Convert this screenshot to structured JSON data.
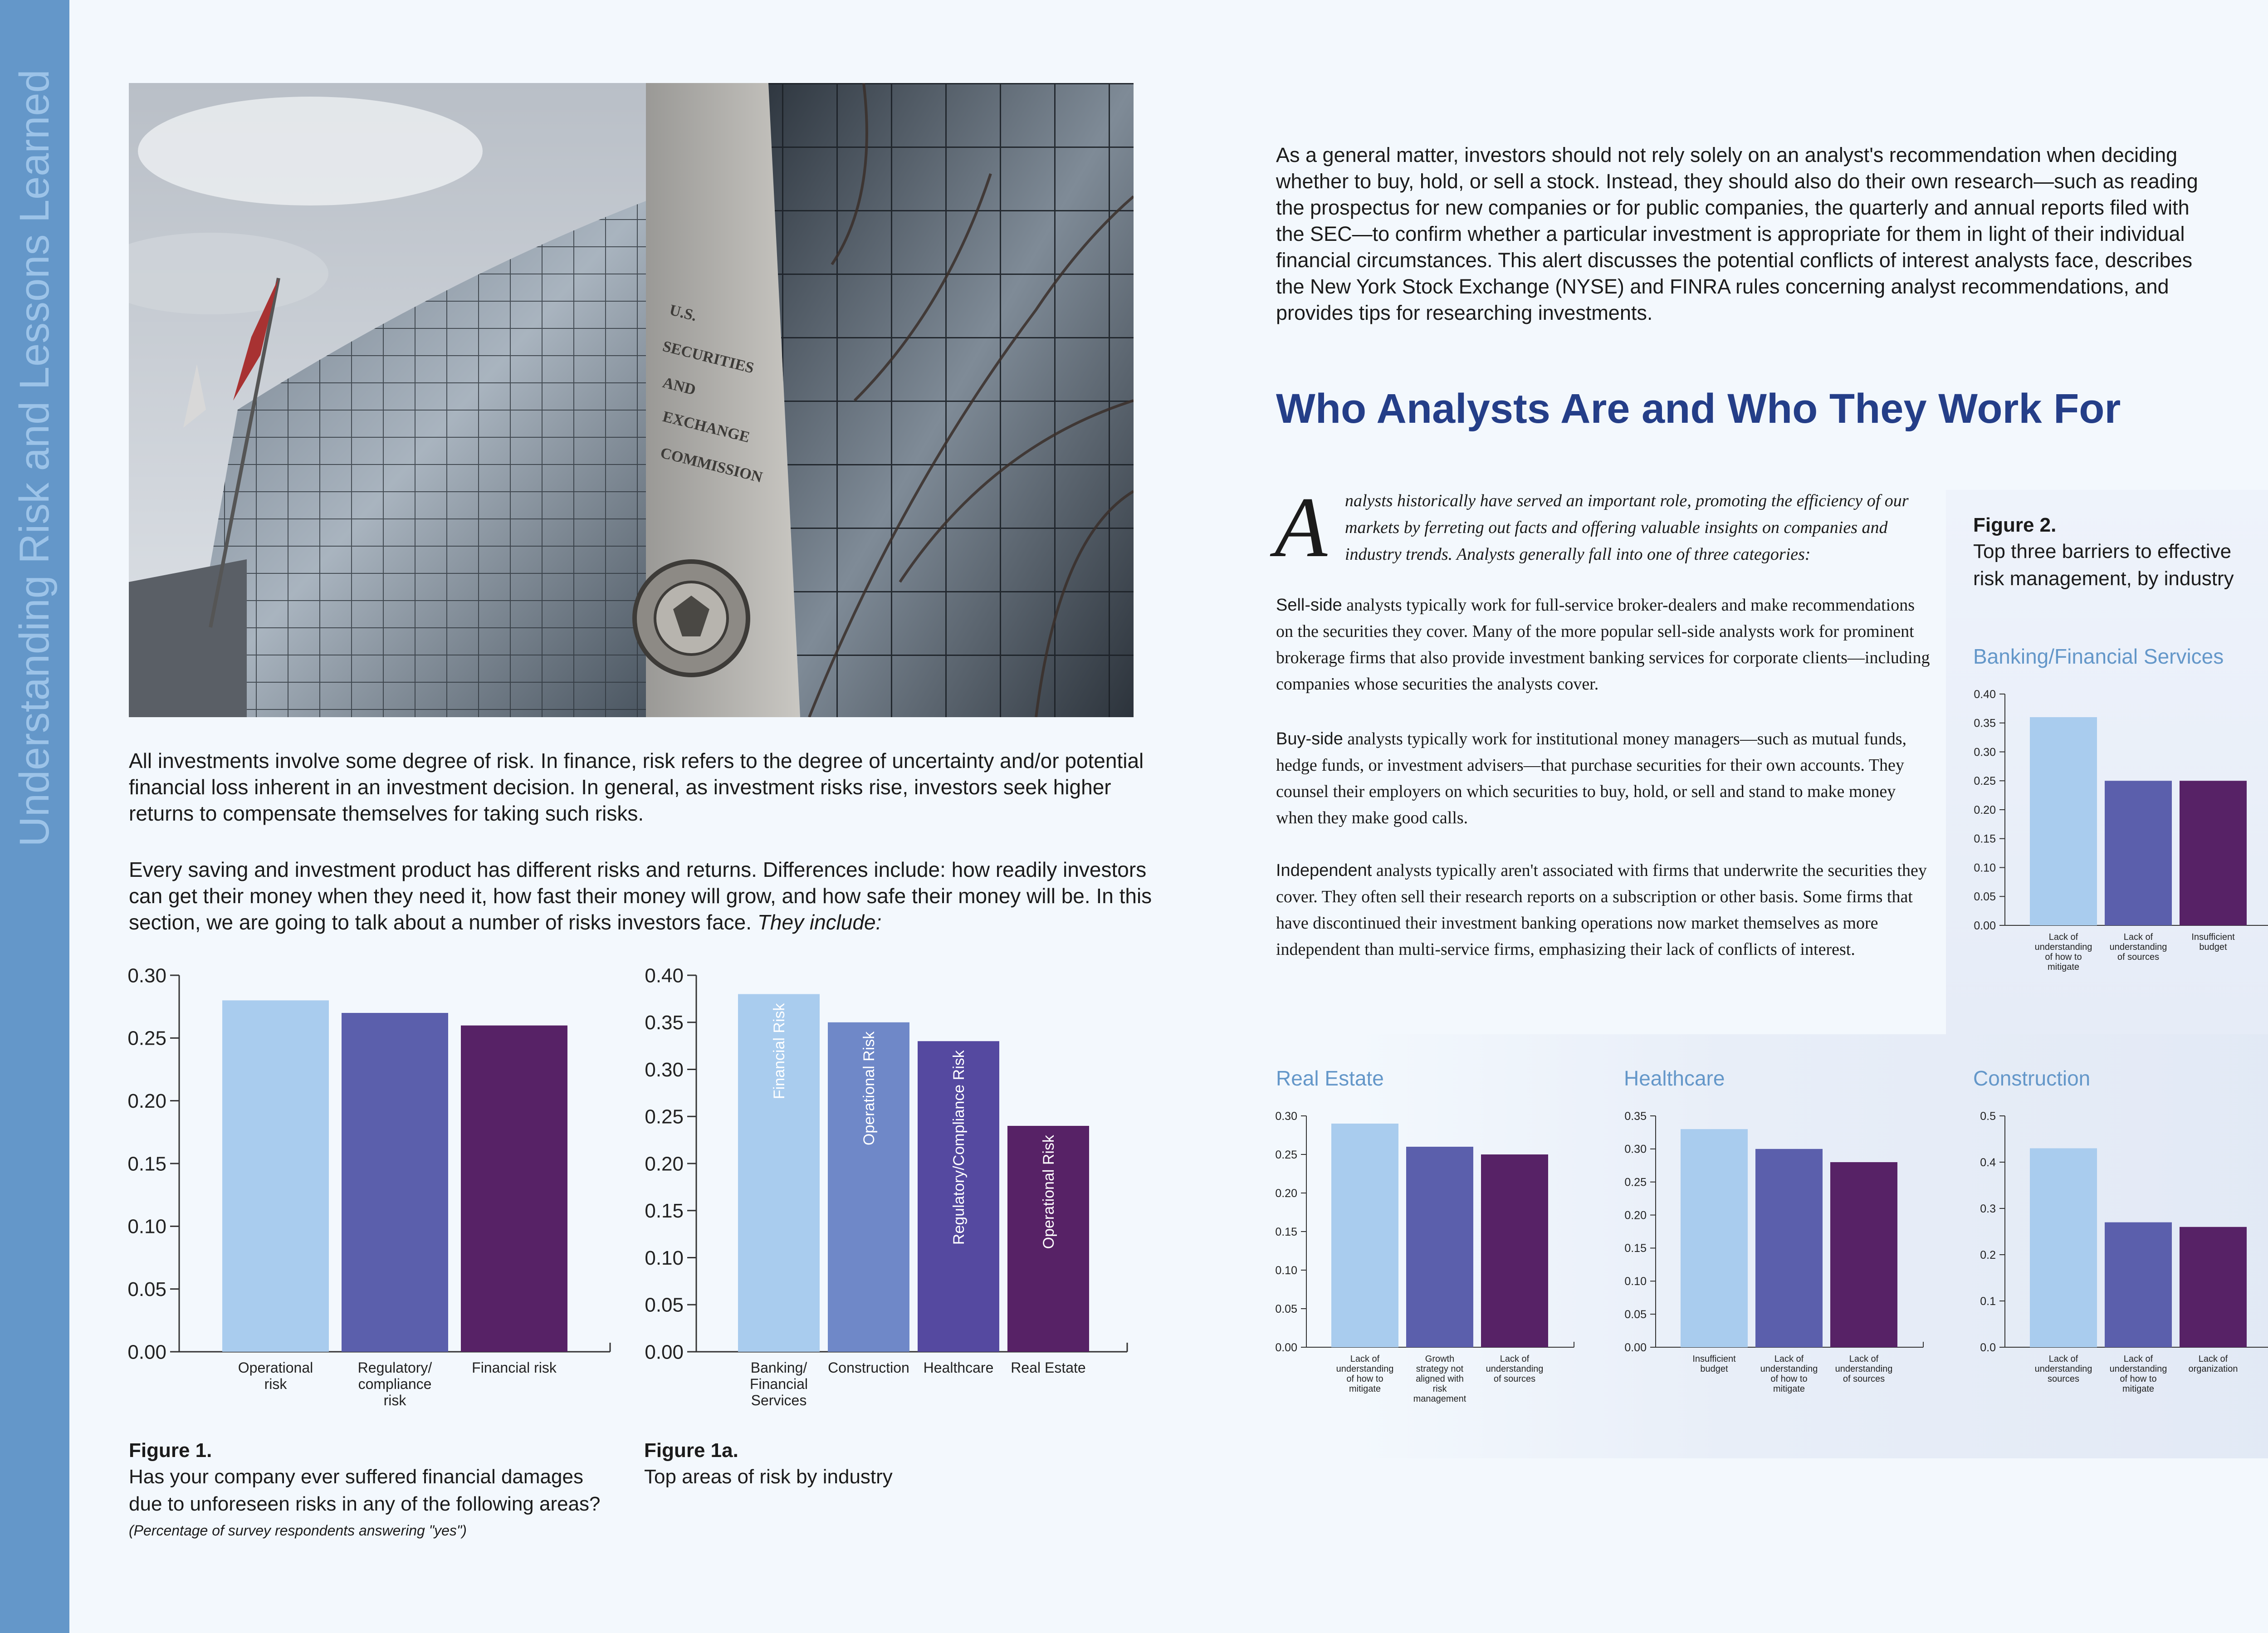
{
  "sidebar": {
    "title": "Understanding Risk and Lessons Learned"
  },
  "photo": {
    "building_sign": [
      "U.S.",
      "SECURITIES",
      "AND",
      "EXCHANGE",
      "COMMISSION"
    ],
    "seal_text": "SECURITIES AND EXCHANGE COMMISSION"
  },
  "left_text": {
    "p1": "All investments involve some degree of risk. In finance, risk refers to the degree of uncertainty and/or potential financial loss inherent in an investment decision.  In general, as investment risks rise, investors seek higher returns to compensate themselves for taking such risks.",
    "p2_main": "Every saving and investment product has different risks and returns. Differences include: how readily investors can get their money when they need it, how fast their money will grow, and how safe their money will be. In this section, we are going to talk about a number of risks investors face.",
    "p2_italic": "They include:"
  },
  "right_text": {
    "top": "As a general matter, investors should not rely solely on an analyst's recommendation when deciding whether to buy, hold, or sell a stock. Instead, they should also do their own research—such as reading the prospectus for new companies or for public companies, the quarterly and annual reports filed with the SEC—to confirm whether a particular investment is appropriate for them in light of their individual financial circumstances. This alert discusses the potential conflicts of interest analysts face, describes the New York Stock Exchange (NYSE) and FINRA rules concerning analyst recommendations, and provides tips for researching investments.",
    "heading": "Who Analysts Are and Who They Work For",
    "dropcap": "A",
    "intro": "nalysts historically have served an important role, promoting the efficiency of our markets by ferreting out facts and offering valuable insights on companies and industry trends. Analysts generally fall into one of three categories:",
    "sell_lead": "Sell-side",
    "sell_text": " analysts typically work for full-service broker-dealers and make recommendations on the securities they cover. Many of the more popular sell-side analysts work for prominent brokerage firms that also provide investment banking services for corporate clients—including companies whose securities the analysts cover.",
    "buy_lead": "Buy-side",
    "buy_text": " analysts typically work for institutional money managers—such as mutual funds, hedge funds, or investment advisers—that purchase securities for their own accounts. They counsel their employers on which securities to buy, hold, or sell and stand to make money when they make good calls.",
    "ind_lead": "Independent",
    "ind_text": " analysts typically aren't associated with firms that underwrite the securities they cover. They often sell their research reports on a subscription or other basis. Some firms that have discontinued their investment banking operations now market themselves as more independent than multi-service firms, emphasizing their lack of conflicts of interest."
  },
  "figures": {
    "fig1": {
      "title": "Figure 1.",
      "caption": "Has your company ever suffered financial damages due to unforeseen risks in any of the following areas?",
      "note": "(Percentage of survey respondents answering \"yes\")"
    },
    "fig1a": {
      "title": "Figure 1a.",
      "caption": "Top areas of risk by industry"
    },
    "fig2": {
      "title": "Figure 2.",
      "caption": "Top three barriers to effective risk management, by industry"
    }
  },
  "chart_data": [
    {
      "id": "fig1",
      "type": "bar",
      "categories": [
        "Operational risk",
        "Regulatory/ compliance risk",
        "Financial risk"
      ],
      "values": [
        0.28,
        0.27,
        0.26
      ],
      "ylim": [
        0,
        0.3
      ],
      "yticks": [
        0.0,
        0.05,
        0.1,
        0.15,
        0.2,
        0.25,
        0.3
      ],
      "colors": [
        "#a9ccee",
        "#5b5fac",
        "#572266"
      ]
    },
    {
      "id": "fig1a",
      "type": "bar",
      "categories": [
        "Banking/ Financial Services",
        "Construction",
        "Healthcare",
        "Real Estate"
      ],
      "values": [
        0.38,
        0.35,
        0.33,
        0.24
      ],
      "bar_labels": [
        "Financial Risk",
        "Operational Risk",
        "Regulatory/Compliance Risk",
        "Operational Risk"
      ],
      "ylim": [
        0,
        0.4
      ],
      "yticks": [
        0.0,
        0.05,
        0.1,
        0.15,
        0.2,
        0.25,
        0.3,
        0.35,
        0.4
      ],
      "colors": [
        "#a9ccee",
        "#6f88c8",
        "#5549a0",
        "#572266"
      ]
    },
    {
      "id": "banking",
      "type": "bar",
      "title": "Banking/Financial Services",
      "categories": [
        "Lack of understanding of how to mitigate",
        "Lack of understanding of sources",
        "Insufficient budget"
      ],
      "values": [
        0.36,
        0.25,
        0.25
      ],
      "ylim": [
        0,
        0.4
      ],
      "yticks": [
        0.0,
        0.05,
        0.1,
        0.15,
        0.2,
        0.25,
        0.3,
        0.35,
        0.4
      ],
      "colors": [
        "#a9ccee",
        "#5b5fac",
        "#572266"
      ]
    },
    {
      "id": "realestate",
      "type": "bar",
      "title": "Real Estate",
      "categories": [
        "Lack of understanding of how to mitigate",
        "Growth strategy not aligned with risk management",
        "Lack of understanding of sources"
      ],
      "values": [
        0.29,
        0.26,
        0.25
      ],
      "ylim": [
        0,
        0.3
      ],
      "yticks": [
        0.0,
        0.05,
        0.1,
        0.15,
        0.2,
        0.25,
        0.3
      ],
      "colors": [
        "#a9ccee",
        "#5b5fac",
        "#572266"
      ]
    },
    {
      "id": "healthcare",
      "type": "bar",
      "title": "Healthcare",
      "categories": [
        "Insufficient budget",
        "Lack of understanding of how to mitigate",
        "Lack of understanding of sources"
      ],
      "values": [
        0.33,
        0.3,
        0.28
      ],
      "ylim": [
        0,
        0.35
      ],
      "yticks": [
        0.0,
        0.05,
        0.1,
        0.15,
        0.2,
        0.25,
        0.3,
        0.35
      ],
      "colors": [
        "#a9ccee",
        "#5b5fac",
        "#572266"
      ]
    },
    {
      "id": "construction",
      "type": "bar",
      "title": "Construction",
      "categories": [
        "Lack of understanding sources",
        "Lack of understanding of how to mitigate",
        "Lack of organization"
      ],
      "values": [
        0.43,
        0.27,
        0.26
      ],
      "ylim": [
        0,
        0.5
      ],
      "yticks": [
        0.0,
        0.1,
        0.2,
        0.3,
        0.4,
        0.5
      ],
      "colors": [
        "#a9ccee",
        "#5b5fac",
        "#572266"
      ]
    }
  ]
}
